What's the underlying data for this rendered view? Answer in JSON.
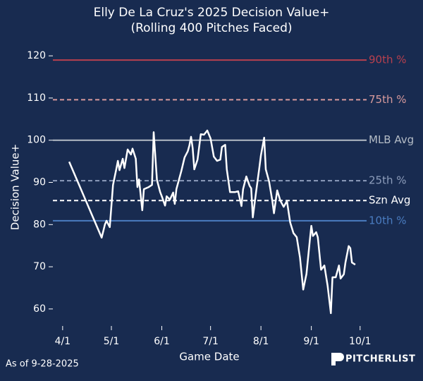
{
  "chart_data": {
    "type": "line",
    "title": "Elly De La Cruz's 2025 Decision Value+",
    "subtitle": "(Rolling 400 Pitches Faced)",
    "x_label": "Game Date",
    "y_label": "Decision Value+",
    "footnote": "As of 9-28-2025",
    "logo": "PITCHERLIST",
    "xlim": [
      "3/26",
      "10/5"
    ],
    "xticks": [
      "4/1",
      "5/1",
      "6/1",
      "7/1",
      "8/1",
      "9/1",
      "10/1"
    ],
    "ylim": [
      56.3,
      123.2
    ],
    "yticks": [
      60,
      70,
      80,
      90,
      100,
      110,
      120
    ],
    "reference_lines": [
      {
        "label": "90th %",
        "value": 119,
        "color": "#b8404e",
        "dashed": false
      },
      {
        "label": "75th %",
        "value": 109.6,
        "color": "#d79a9c",
        "dashed": true
      },
      {
        "label": "MLB Avg",
        "value": 100,
        "color": "#b4bcc6",
        "dashed": false
      },
      {
        "label": "25th %",
        "value": 90.4,
        "color": "#8d9dbb",
        "dashed": true
      },
      {
        "label": "Szn Avg",
        "value": 85.7,
        "color": "#ffffff",
        "dashed": true
      },
      {
        "label": "10th %",
        "value": 80.9,
        "color": "#4a7cc0",
        "dashed": false
      }
    ],
    "series": [
      {
        "color": "#ffffff",
        "x": [
          "4/5",
          "4/25",
          "4/27",
          "4/28",
          "4/30",
          "5/2",
          "5/4",
          "5/5",
          "5/6",
          "5/8",
          "5/9",
          "5/11",
          "5/13",
          "5/14",
          "5/16",
          "5/17",
          "5/18",
          "5/20",
          "5/21",
          "5/24",
          "5/26",
          "5/27",
          "5/29",
          "5/31",
          "6/1",
          "6/3",
          "6/4",
          "6/6",
          "6/8",
          "6/9",
          "6/10",
          "6/13",
          "6/15",
          "6/17",
          "6/18",
          "6/19",
          "6/20",
          "6/21",
          "6/23",
          "6/25",
          "6/27",
          "6/29",
          "7/1",
          "7/3",
          "7/5",
          "7/7",
          "7/8",
          "7/10",
          "7/11",
          "7/13",
          "7/16",
          "7/18",
          "7/20",
          "7/21",
          "7/23",
          "7/25",
          "7/26",
          "7/27",
          "7/29",
          "7/31",
          "8/1",
          "8/3",
          "8/4",
          "8/6",
          "8/8",
          "8/9",
          "8/11",
          "8/13",
          "8/15",
          "8/17",
          "8/19",
          "8/21",
          "8/23",
          "8/25",
          "8/27",
          "8/29",
          "8/31",
          "9/1",
          "9/2",
          "9/4",
          "9/5",
          "9/7",
          "9/9",
          "9/11",
          "9/13",
          "9/14",
          "9/16",
          "9/18",
          "9/19",
          "9/21",
          "9/22",
          "9/24",
          "9/25",
          "9/26",
          "9/28"
        ],
        "values": [
          94.9,
          76.9,
          80.0,
          80.9,
          79.4,
          89.4,
          93.1,
          95.1,
          92.9,
          95.6,
          93.4,
          97.8,
          96.6,
          98.0,
          95.6,
          88.9,
          90.7,
          83.4,
          88.4,
          88.9,
          89.4,
          101.9,
          90.6,
          87.7,
          86.7,
          84.5,
          86.7,
          85.9,
          87.6,
          84.9,
          88.4,
          92.7,
          95.9,
          97.4,
          98.8,
          100.8,
          98.1,
          93.1,
          95.4,
          101.4,
          101.3,
          102.3,
          100.4,
          96.1,
          95.1,
          95.4,
          98.4,
          98.9,
          93.1,
          87.7,
          87.7,
          87.9,
          84.4,
          88.4,
          91.4,
          89.2,
          88.6,
          81.7,
          87.7,
          93.4,
          96.4,
          100.6,
          93.1,
          90.2,
          85.6,
          82.7,
          88.1,
          85.6,
          84.2,
          85.6,
          80.5,
          78.0,
          77.0,
          72.2,
          64.6,
          68.3,
          76.0,
          79.7,
          77.3,
          78.2,
          77.0,
          69.3,
          70.3,
          65.5,
          59.0,
          67.5,
          67.5,
          70.3,
          67.2,
          68.2,
          71.0,
          74.9,
          74.4,
          71.0,
          70.5
        ]
      }
    ]
  }
}
